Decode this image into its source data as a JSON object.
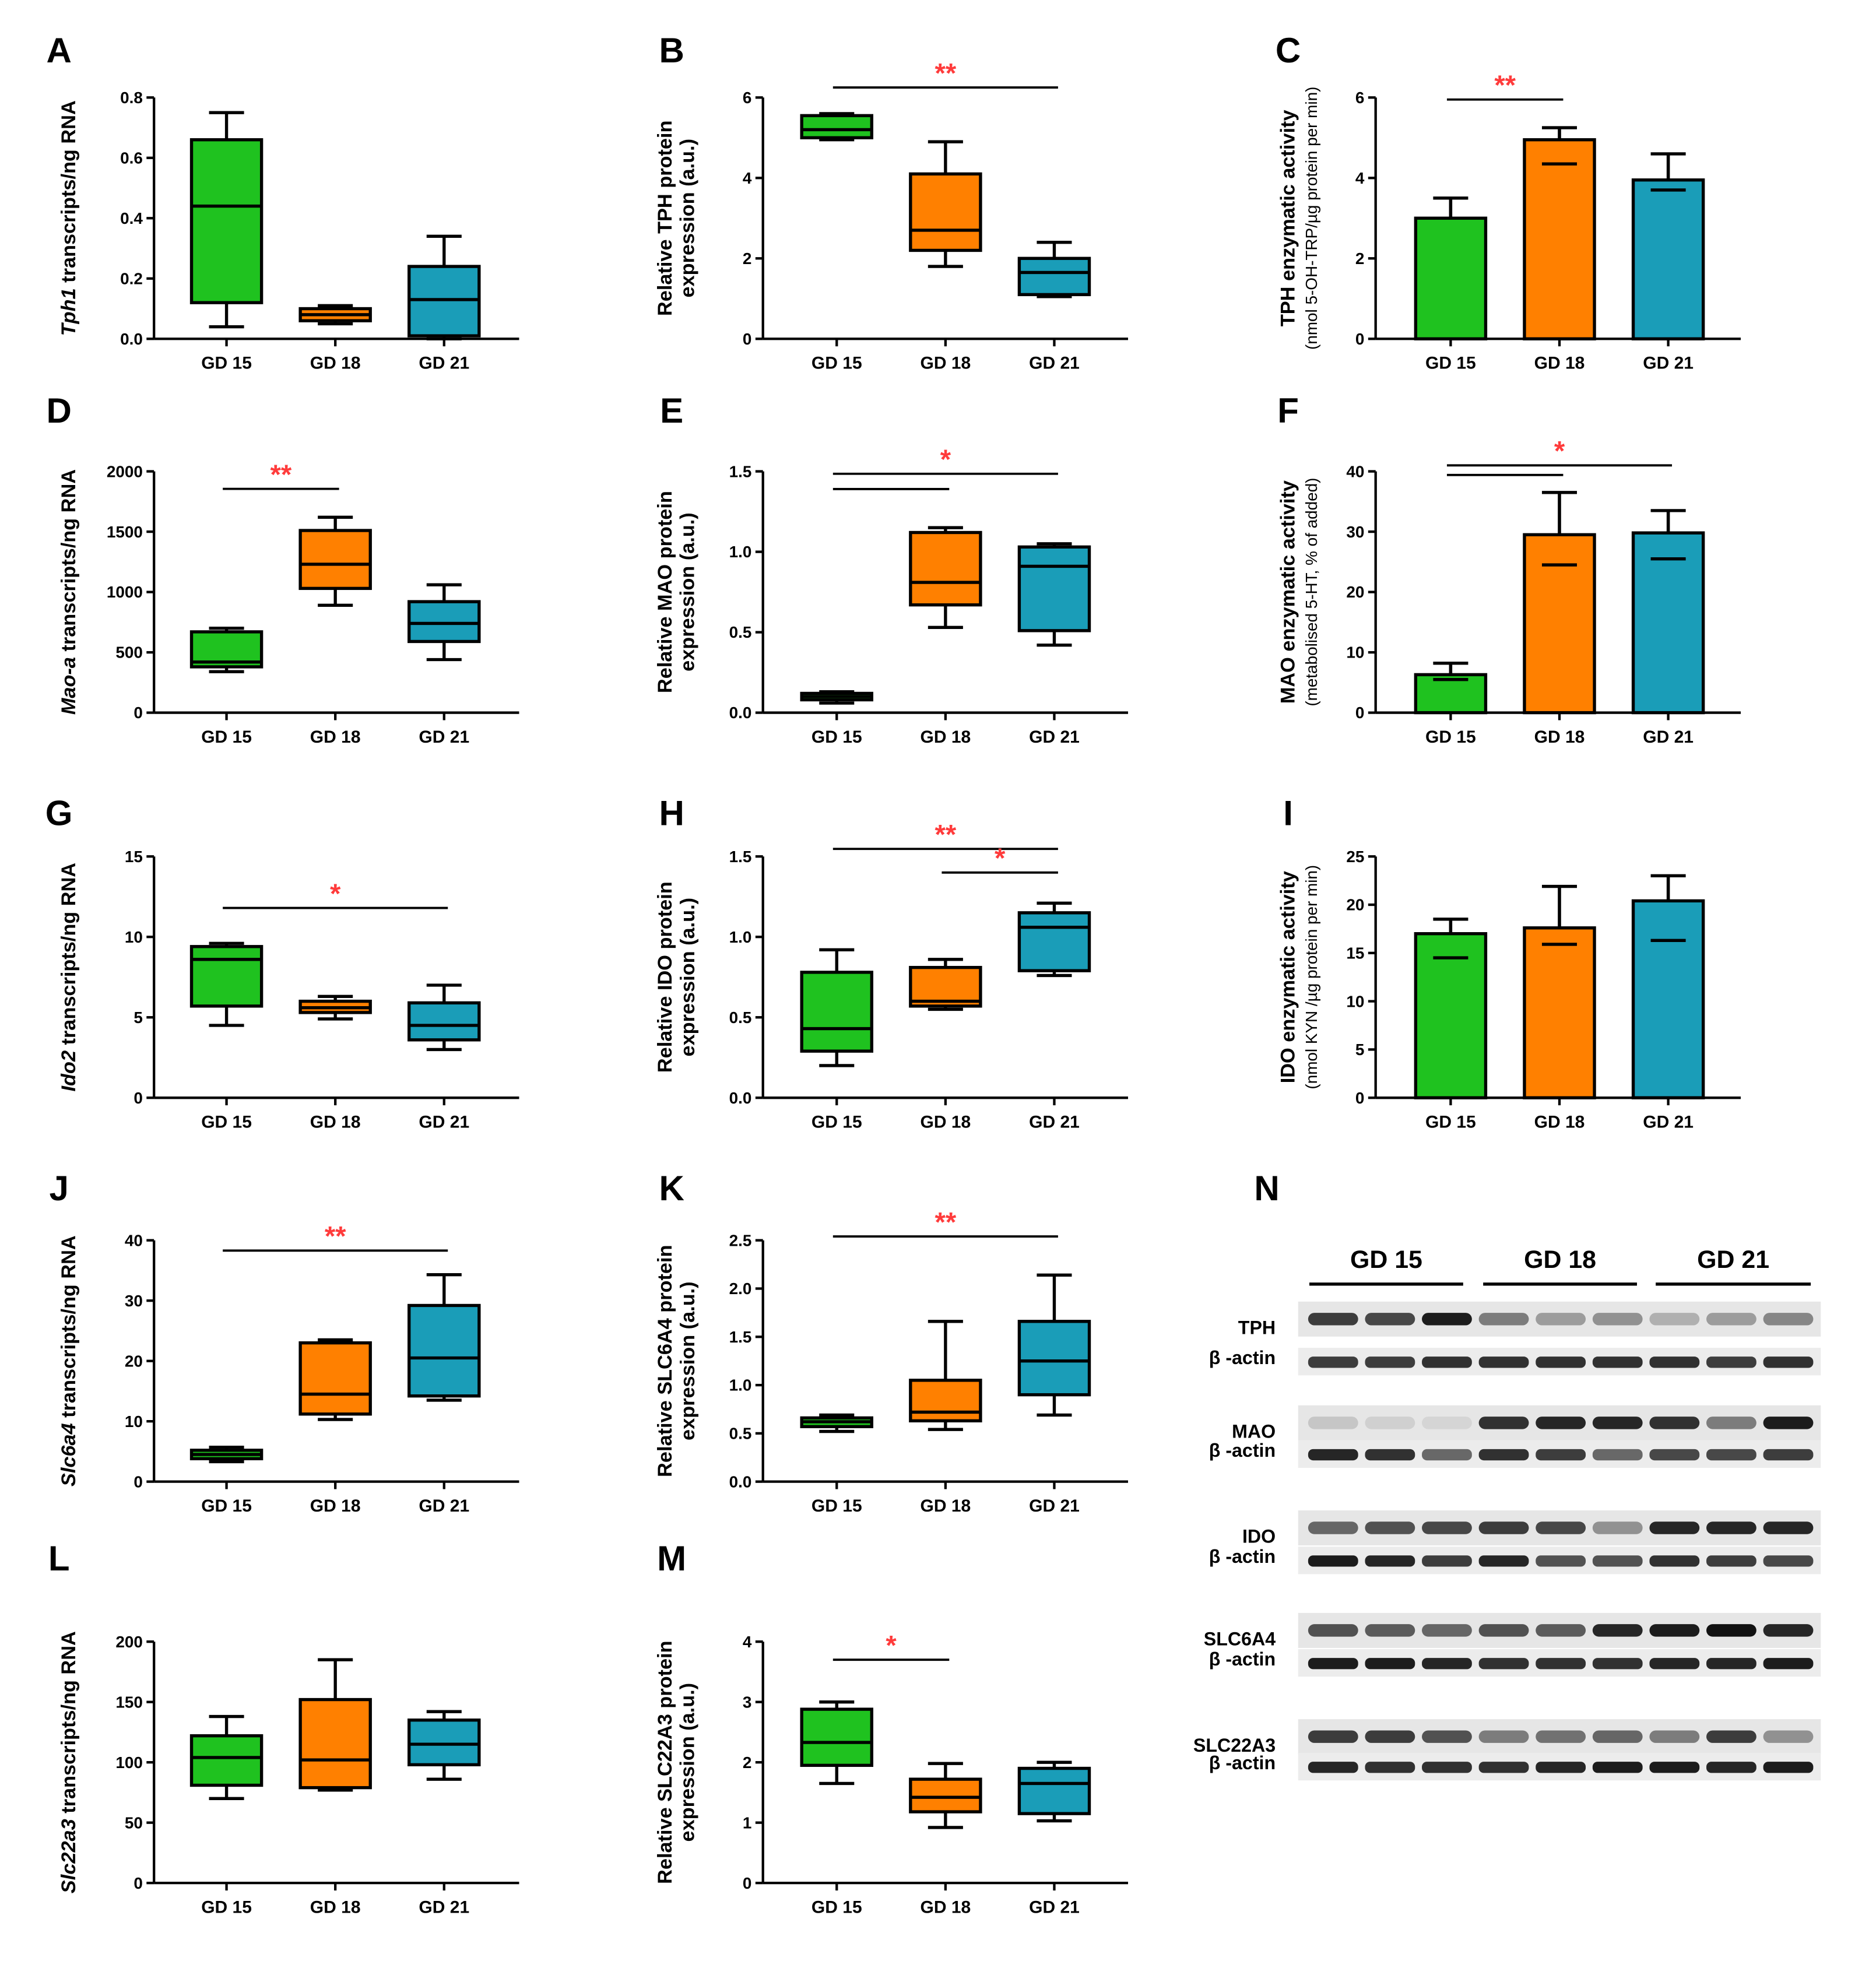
{
  "colors": {
    "GD 15": "#1fc21f",
    "GD 18": "#ff8000",
    "GD 21": "#1a9db8",
    "significance": "#ff3b3b"
  },
  "chart_data": [
    {
      "letter": "A",
      "type": "box",
      "gene": "Tph1",
      "ylabel": " transcripts/ng RNA",
      "ylabel2": "",
      "ylim": [
        0,
        0.8
      ],
      "yticks": [
        "0.0",
        "0.2",
        "0.4",
        "0.6",
        "0.8"
      ],
      "categories": [
        "GD 15",
        "GD 18",
        "GD 21"
      ],
      "values": [
        {
          "min": 0.04,
          "q1": 0.12,
          "median": 0.44,
          "q3": 0.66,
          "max": 0.75
        },
        {
          "min": 0.05,
          "q1": 0.06,
          "median": 0.08,
          "q3": 0.1,
          "max": 0.11
        },
        {
          "min": 0.0,
          "q1": 0.01,
          "median": 0.13,
          "q3": 0.24,
          "max": 0.34
        }
      ],
      "sig": []
    },
    {
      "letter": "B",
      "type": "box",
      "gene": "",
      "ylabel": "Relative TPH protein",
      "ylabel2": "expression (a.u.)",
      "ylim": [
        0,
        6
      ],
      "yticks": [
        "0",
        "2",
        "4",
        "6"
      ],
      "categories": [
        "GD 15",
        "GD 18",
        "GD 21"
      ],
      "values": [
        {
          "min": 4.95,
          "q1": 5.0,
          "median": 5.2,
          "q3": 5.55,
          "max": 5.6
        },
        {
          "min": 1.8,
          "q1": 2.2,
          "median": 2.7,
          "q3": 4.1,
          "max": 4.9
        },
        {
          "min": 1.05,
          "q1": 1.1,
          "median": 1.65,
          "q3": 2.0,
          "max": 2.4
        }
      ],
      "sig": [
        {
          "from": 0,
          "to": 2,
          "y": 6.25,
          "label": "**"
        }
      ]
    },
    {
      "letter": "C",
      "type": "bar",
      "gene": "",
      "ylabel": "TPH enzymatic activity",
      "ylabel2": "(nmol 5-OH-TRP/µg protein per min)",
      "ylim": [
        0,
        6
      ],
      "yticks": [
        "0",
        "2",
        "4",
        "6"
      ],
      "categories": [
        "GD 15",
        "GD 18",
        "GD 21"
      ],
      "values": [
        {
          "mean": 3.0,
          "lo": 3.0,
          "hi": 3.5
        },
        {
          "mean": 4.95,
          "lo": 4.35,
          "hi": 5.25
        },
        {
          "mean": 3.95,
          "lo": 3.7,
          "hi": 4.6
        }
      ],
      "sig": [
        {
          "from": 0,
          "to": 1,
          "y": 5.95,
          "label": "**"
        }
      ]
    },
    {
      "letter": "D",
      "type": "box",
      "gene": "Mao-a",
      "ylabel": " transcripts/ng RNA",
      "ylabel2": "",
      "ylim": [
        0,
        2000
      ],
      "yticks": [
        "0",
        "500",
        "1000",
        "1500",
        "2000"
      ],
      "categories": [
        "GD 15",
        "GD 18",
        "GD 21"
      ],
      "values": [
        {
          "min": 340,
          "q1": 380,
          "median": 420,
          "q3": 670,
          "max": 700
        },
        {
          "min": 890,
          "q1": 1030,
          "median": 1230,
          "q3": 1510,
          "max": 1620
        },
        {
          "min": 440,
          "q1": 590,
          "median": 740,
          "q3": 920,
          "max": 1060
        }
      ],
      "sig": [
        {
          "from": 0,
          "to": 1,
          "y": 1855,
          "label": "**"
        }
      ]
    },
    {
      "letter": "E",
      "type": "box",
      "gene": "",
      "ylabel": "Relative MAO protein",
      "ylabel2": "expression (a.u.)",
      "ylim": [
        0,
        1.5
      ],
      "yticks": [
        "0.0",
        "0.5",
        "1.0",
        "1.5"
      ],
      "categories": [
        "GD 15",
        "GD 18",
        "GD 21"
      ],
      "values": [
        {
          "min": 0.06,
          "q1": 0.08,
          "median": 0.1,
          "q3": 0.12,
          "max": 0.13
        },
        {
          "min": 0.53,
          "q1": 0.67,
          "median": 0.81,
          "q3": 1.12,
          "max": 1.15
        },
        {
          "min": 0.42,
          "q1": 0.51,
          "median": 0.91,
          "q3": 1.03,
          "max": 1.05
        }
      ],
      "sig": [
        {
          "from": 0,
          "to": 2,
          "y": 1.485,
          "label": "*"
        },
        {
          "from": 0,
          "to": 1,
          "y": 1.39,
          "label": ""
        }
      ]
    },
    {
      "letter": "F",
      "type": "bar",
      "gene": "",
      "ylabel": "MAO enzymatic activity",
      "ylabel2": "(metabolised 5-HT, % of added)",
      "ylim": [
        0,
        40
      ],
      "yticks": [
        "0",
        "10",
        "20",
        "30",
        "40"
      ],
      "categories": [
        "GD 15",
        "GD 18",
        "GD 21"
      ],
      "values": [
        {
          "mean": 6.3,
          "lo": 5.5,
          "hi": 8.2
        },
        {
          "mean": 29.5,
          "lo": 24.5,
          "hi": 36.5
        },
        {
          "mean": 29.8,
          "lo": 25.5,
          "hi": 33.5
        }
      ],
      "sig": [
        {
          "from": 0,
          "to": 2,
          "y": 41.0,
          "label": "*"
        },
        {
          "from": 0,
          "to": 1,
          "y": 39.4,
          "label": ""
        }
      ]
    },
    {
      "letter": "G",
      "type": "box",
      "gene": "Ido2",
      "ylabel": " transcripts/ng RNA",
      "ylabel2": "",
      "ylim": [
        0,
        15
      ],
      "yticks": [
        "0",
        "5",
        "10",
        "15"
      ],
      "categories": [
        "GD 15",
        "GD 18",
        "GD 21"
      ],
      "values": [
        {
          "min": 4.5,
          "q1": 5.7,
          "median": 8.6,
          "q3": 9.4,
          "max": 9.6
        },
        {
          "min": 4.9,
          "q1": 5.3,
          "median": 5.6,
          "q3": 6.0,
          "max": 6.3
        },
        {
          "min": 3.0,
          "q1": 3.6,
          "median": 4.5,
          "q3": 5.9,
          "max": 7.0
        }
      ],
      "sig": [
        {
          "from": 0,
          "to": 2,
          "y": 11.8,
          "label": "*"
        }
      ]
    },
    {
      "letter": "H",
      "type": "box",
      "gene": "",
      "ylabel": "Relative IDO protein",
      "ylabel2": "expression (a.u.)",
      "ylim": [
        0,
        1.5
      ],
      "yticks": [
        "0.0",
        "0.5",
        "1.0",
        "1.5"
      ],
      "categories": [
        "GD 15",
        "GD 18",
        "GD 21"
      ],
      "values": [
        {
          "min": 0.2,
          "q1": 0.29,
          "median": 0.43,
          "q3": 0.78,
          "max": 0.92
        },
        {
          "min": 0.55,
          "q1": 0.57,
          "median": 0.6,
          "q3": 0.81,
          "max": 0.86
        },
        {
          "min": 0.76,
          "q1": 0.79,
          "median": 1.06,
          "q3": 1.15,
          "max": 1.21
        }
      ],
      "sig": [
        {
          "from": 0,
          "to": 2,
          "y": 1.547,
          "label": "**"
        },
        {
          "from": 1,
          "to": 2,
          "y": 1.4,
          "label": "*"
        }
      ]
    },
    {
      "letter": "I",
      "type": "bar",
      "gene": "",
      "ylabel": "IDO enzymatic activity",
      "ylabel2": "(nmol KYN /µg protein per min)",
      "ylim": [
        0,
        25
      ],
      "yticks": [
        "0",
        "5",
        "10",
        "15",
        "20",
        "25"
      ],
      "categories": [
        "GD 15",
        "GD 18",
        "GD 21"
      ],
      "values": [
        {
          "mean": 17.0,
          "lo": 14.5,
          "hi": 18.5
        },
        {
          "mean": 17.6,
          "lo": 15.9,
          "hi": 21.9
        },
        {
          "mean": 20.4,
          "lo": 16.3,
          "hi": 23.0
        }
      ],
      "sig": []
    },
    {
      "letter": "J",
      "type": "box",
      "gene": "Slc6a4",
      "ylabel": " transcripts/ng RNA",
      "ylabel2": "",
      "ylim": [
        0,
        40
      ],
      "yticks": [
        "0",
        "10",
        "20",
        "30",
        "40"
      ],
      "categories": [
        "GD 15",
        "GD 18",
        "GD 21"
      ],
      "values": [
        {
          "min": 3.3,
          "q1": 3.8,
          "median": 4.5,
          "q3": 5.2,
          "max": 5.7
        },
        {
          "min": 10.3,
          "q1": 11.2,
          "median": 14.5,
          "q3": 23.0,
          "max": 23.5
        },
        {
          "min": 13.5,
          "q1": 14.2,
          "median": 20.5,
          "q3": 29.2,
          "max": 34.3
        }
      ],
      "sig": [
        {
          "from": 0,
          "to": 2,
          "y": 38.3,
          "label": "**"
        }
      ]
    },
    {
      "letter": "K",
      "type": "box",
      "gene": "",
      "ylabel": "Relative SLC6A4 protein",
      "ylabel2": "expression (a.u.)",
      "ylim": [
        0,
        2.5
      ],
      "yticks": [
        "0.0",
        "0.5",
        "1.0",
        "1.5",
        "2.0",
        "2.5"
      ],
      "categories": [
        "GD 15",
        "GD 18",
        "GD 21"
      ],
      "values": [
        {
          "min": 0.52,
          "q1": 0.57,
          "median": 0.62,
          "q3": 0.66,
          "max": 0.69
        },
        {
          "min": 0.54,
          "q1": 0.63,
          "median": 0.72,
          "q3": 1.05,
          "max": 1.66
        },
        {
          "min": 0.69,
          "q1": 0.9,
          "median": 1.25,
          "q3": 1.66,
          "max": 2.14
        }
      ],
      "sig": [
        {
          "from": 0,
          "to": 2,
          "y": 2.54,
          "label": "**"
        }
      ]
    },
    {
      "letter": "L",
      "type": "box",
      "gene": "Slc22a3",
      "ylabel": " transcripts/ng RNA",
      "ylabel2": "",
      "ylim": [
        0,
        200
      ],
      "yticks": [
        "0",
        "50",
        "100",
        "150",
        "200"
      ],
      "categories": [
        "GD 15",
        "GD 18",
        "GD 21"
      ],
      "values": [
        {
          "min": 70,
          "q1": 81,
          "median": 104,
          "q3": 122,
          "max": 138
        },
        {
          "min": 77,
          "q1": 79,
          "median": 102,
          "q3": 152,
          "max": 185
        },
        {
          "min": 86,
          "q1": 98,
          "median": 115,
          "q3": 135,
          "max": 142
        }
      ],
      "sig": []
    },
    {
      "letter": "M",
      "type": "box",
      "gene": "",
      "ylabel": "Relative SLC22A3 protein",
      "ylabel2": "expression (a.u.)",
      "ylim": [
        0,
        4
      ],
      "yticks": [
        "0",
        "1",
        "2",
        "3",
        "4"
      ],
      "categories": [
        "GD 15",
        "GD 18",
        "GD 21"
      ],
      "values": [
        {
          "min": 1.65,
          "q1": 1.95,
          "median": 2.33,
          "q3": 2.88,
          "max": 3.0
        },
        {
          "min": 0.92,
          "q1": 1.18,
          "median": 1.42,
          "q3": 1.72,
          "max": 1.98
        },
        {
          "min": 1.03,
          "q1": 1.15,
          "median": 1.65,
          "q3": 1.9,
          "max": 2.0
        }
      ],
      "sig": [
        {
          "from": 0,
          "to": 1,
          "y": 3.7,
          "label": "*"
        }
      ]
    }
  ],
  "blot": {
    "letter": "N",
    "groups": [
      "GD 15",
      "GD 18",
      "GD 21"
    ],
    "rows": [
      {
        "label": "TPH",
        "actin": "β -actin",
        "band": [
          0.8,
          0.75,
          0.95,
          0.5,
          0.35,
          0.4,
          0.25,
          0.35,
          0.45
        ],
        "actin_band": [
          0.8,
          0.8,
          0.85,
          0.85,
          0.85,
          0.85,
          0.85,
          0.8,
          0.85
        ]
      },
      {
        "label": "MAO",
        "actin": "β -actin",
        "band": [
          0.15,
          0.1,
          0.08,
          0.85,
          0.9,
          0.9,
          0.85,
          0.5,
          0.95
        ],
        "actin_band": [
          0.9,
          0.85,
          0.6,
          0.85,
          0.8,
          0.6,
          0.75,
          0.75,
          0.8
        ]
      },
      {
        "label": "IDO",
        "actin": "β -actin",
        "band": [
          0.6,
          0.7,
          0.75,
          0.8,
          0.75,
          0.4,
          0.9,
          0.9,
          0.9
        ],
        "actin_band": [
          0.95,
          0.9,
          0.8,
          0.9,
          0.7,
          0.7,
          0.85,
          0.8,
          0.75
        ]
      },
      {
        "label": "SLC6A4",
        "actin": "β -actin",
        "band": [
          0.7,
          0.65,
          0.6,
          0.7,
          0.65,
          0.9,
          0.95,
          1.0,
          0.9
        ],
        "actin_band": [
          0.95,
          0.95,
          0.9,
          0.85,
          0.85,
          0.85,
          0.9,
          0.9,
          0.95
        ]
      },
      {
        "label": "SLC22A3",
        "actin": "β -actin",
        "band": [
          0.8,
          0.8,
          0.7,
          0.5,
          0.55,
          0.6,
          0.5,
          0.8,
          0.4
        ],
        "actin_band": [
          0.9,
          0.85,
          0.85,
          0.85,
          0.9,
          0.95,
          0.95,
          0.9,
          0.95
        ]
      }
    ]
  }
}
